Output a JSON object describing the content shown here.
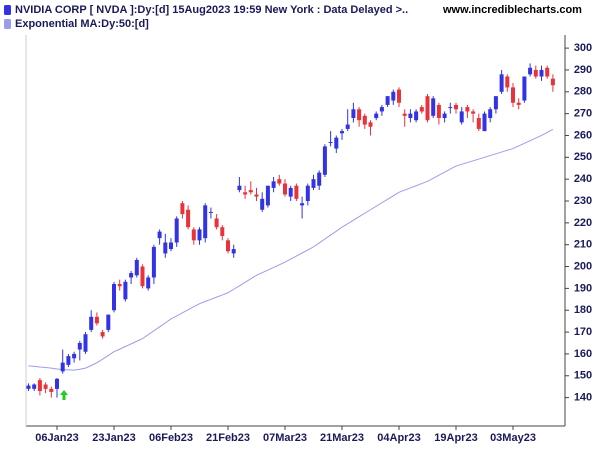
{
  "chart_data": {
    "type": "candlestick",
    "title": "NVIDIA CORP [ NVDA ]:Dy:[d]  15Aug2023 19:59 New York : Data Delayed >..",
    "source": "www.incrediblecharts.com",
    "categories": [
      null,
      null,
      null,
      null,
      null,
      "06Jan23",
      null,
      null,
      null,
      null,
      null,
      null,
      null,
      null,
      null,
      "23Jan23",
      null,
      null,
      null,
      null,
      null,
      null,
      null,
      null,
      null,
      "06Feb23",
      null,
      null,
      null,
      null,
      null,
      null,
      null,
      null,
      null,
      "21Feb23",
      null,
      null,
      null,
      null,
      null,
      null,
      null,
      null,
      null,
      "07Mar23",
      null,
      null,
      null,
      null,
      null,
      null,
      null,
      null,
      null,
      "21Mar23",
      null,
      null,
      null,
      null,
      null,
      null,
      null,
      null,
      null,
      "04Apr23",
      null,
      null,
      null,
      null,
      null,
      null,
      null,
      null,
      null,
      "19Apr23",
      null,
      null,
      null,
      null,
      null,
      null,
      null,
      null,
      null,
      "03May23",
      null,
      null,
      null,
      null,
      null,
      null,
      null
    ],
    "series": [
      {
        "name": "NVIDIA CORP [ NVDA ]:Dy:[d]  15Aug2023 19:59 New York : Data Delayed >..",
        "type": "candlestick",
        "up_color": "#3333e6",
        "down_color": "#e8333a",
        "open": [
          144,
          144,
          148,
          146,
          144,
          144,
          152,
          155,
          158,
          162,
          161,
          171,
          177,
          170,
          171,
          180,
          192,
          185,
          195,
          196,
          200,
          190,
          195,
          213,
          206,
          208,
          211,
          229,
          226,
          217,
          212,
          213,
          225,
          222,
          218,
          212,
          206,
          235,
          234,
          235,
          233,
          226,
          228,
          236,
          240,
          238,
          232,
          237,
          228,
          230,
          236,
          237,
          242,
          257,
          254,
          261,
          263,
          268,
          272,
          269,
          266,
          268,
          271,
          274,
          276,
          281,
          270,
          268,
          267,
          273,
          278,
          269,
          274,
          268,
          273,
          274,
          266,
          273,
          271,
          268,
          262,
          268,
          272,
          280,
          287,
          282,
          275,
          276,
          288,
          290,
          287,
          291,
          286
        ],
        "high": [
          146.5,
          146.5,
          149,
          147,
          145,
          149,
          162,
          160,
          161,
          166,
          170,
          180,
          179,
          171,
          178,
          193,
          194,
          194,
          198,
          204,
          201,
          196,
          210,
          217,
          215,
          213,
          223,
          230,
          228,
          218,
          218,
          229,
          227,
          224,
          219,
          213,
          210,
          241,
          237,
          239,
          236,
          234,
          237,
          241,
          242,
          240,
          237,
          238,
          232,
          238,
          242,
          244,
          256,
          262,
          260,
          263,
          272,
          275,
          273,
          270,
          267,
          271,
          274,
          278,
          281,
          282,
          272,
          272,
          272,
          274,
          279,
          278,
          275,
          271,
          275,
          275,
          273,
          274,
          272,
          270,
          271,
          273,
          278,
          290,
          288,
          284,
          277,
          287,
          293,
          292,
          292,
          292,
          288
        ],
        "low": [
          143,
          143,
          141,
          142,
          140,
          140,
          151,
          154,
          156,
          157,
          160,
          170,
          173,
          167,
          170,
          179,
          189,
          184,
          192,
          195,
          190,
          189,
          192,
          210,
          204,
          207,
          209,
          222,
          217,
          210,
          210,
          211,
          222,
          217,
          212,
          206,
          204,
          234,
          231,
          233,
          230,
          225,
          227,
          234,
          237,
          232,
          230,
          230,
          222,
          228,
          235,
          235,
          241,
          255,
          252,
          258,
          262,
          266,
          264,
          263,
          260,
          267,
          269,
          273,
          274,
          273,
          264,
          266,
          266,
          270,
          266,
          268,
          265,
          266,
          270,
          270,
          265,
          268,
          266,
          262,
          262,
          266,
          270,
          279,
          280,
          273,
          272,
          275,
          287,
          286,
          285,
          286,
          280
        ],
        "close": [
          145.5,
          146,
          143,
          144,
          142.6,
          148.6,
          156,
          159,
          160,
          165,
          169,
          177,
          174,
          168,
          178,
          192,
          191,
          193,
          197,
          203,
          191,
          195,
          209,
          216,
          211,
          211,
          222,
          224,
          218,
          212,
          217,
          228,
          225,
          218,
          214,
          207,
          208,
          237,
          233,
          234,
          232,
          231,
          237,
          239,
          238,
          233,
          236,
          231,
          229,
          237,
          240,
          243,
          255,
          257,
          259,
          262,
          265,
          272,
          267,
          265,
          264,
          270,
          273,
          278,
          280,
          275,
          269,
          270,
          271,
          271,
          267,
          277,
          268,
          270,
          273,
          272,
          271,
          271,
          270,
          263,
          270,
          272,
          278,
          288,
          282,
          275,
          274,
          287,
          291,
          287,
          290,
          287,
          283
        ]
      },
      {
        "name": "Exponential MA:Dy:50:[d]",
        "type": "line",
        "color": "#9c9cec",
        "values": [
          154.5,
          154.3,
          154.0,
          153.8,
          153.5,
          153.1,
          152.8,
          152.7,
          152.6,
          153.0,
          153.5,
          154.7,
          156.0,
          157.6,
          159.3,
          161.0,
          162.2,
          163.4,
          164.6,
          165.8,
          167.0,
          168.8,
          170.6,
          172.4,
          174.2,
          176.0,
          177.4,
          178.8,
          180.2,
          181.6,
          183.0,
          184.0,
          185.0,
          186.0,
          187.0,
          188.0,
          189.6,
          191.2,
          192.8,
          194.4,
          196.0,
          197.2,
          198.4,
          199.6,
          200.8,
          202.0,
          203.4,
          204.8,
          206.2,
          207.6,
          209.0,
          210.8,
          212.6,
          214.4,
          216.2,
          218.0,
          219.6,
          221.2,
          222.8,
          224.4,
          226.0,
          227.6,
          229.2,
          230.8,
          232.4,
          234.0,
          235.0,
          236.0,
          237.0,
          238.0,
          239.0,
          240.4,
          241.8,
          243.2,
          244.6,
          246.0,
          246.8,
          247.6,
          248.4,
          249.2,
          250.0,
          250.8,
          251.6,
          252.4,
          253.2,
          254.0,
          255.2,
          256.4,
          257.6,
          258.8,
          260.0,
          261.4,
          262.8
        ]
      }
    ],
    "ylim": [
      127,
      306
    ],
    "yticks": [
      140,
      150,
      160,
      170,
      180,
      190,
      200,
      210,
      220,
      230,
      240,
      250,
      260,
      270,
      280,
      290,
      300
    ],
    "y_axis_side": "right"
  }
}
